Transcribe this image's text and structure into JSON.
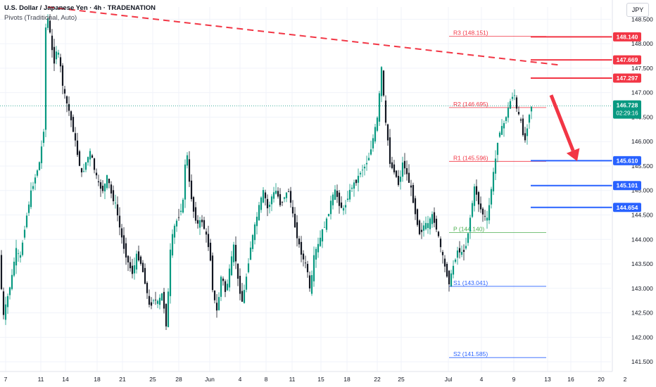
{
  "header": {
    "title": "U.S. Dollar / Japanese Yen · 4h · TRADENATION",
    "indicator": "Pivots (Traditional, Auto)",
    "currency": "JPY"
  },
  "chart_data": {
    "type": "candlestick",
    "ylim": [
      141.3,
      148.75
    ],
    "price_ticks": [
      "141.500",
      "142.000",
      "142.500",
      "143.000",
      "143.500",
      "144.000",
      "144.500",
      "145.000",
      "145.500",
      "146.000",
      "146.500",
      "147.000",
      "147.500",
      "148.000",
      "148.500"
    ],
    "date_ticks": [
      "7",
      "11",
      "14",
      "18",
      "21",
      "25",
      "28",
      "Jun",
      "4",
      "8",
      "11",
      "15",
      "18",
      "22",
      "25",
      "Jul",
      "4",
      "9",
      "13",
      "16",
      "20",
      "2"
    ],
    "current_price": {
      "value": "146.728",
      "countdown": "02:29:16",
      "level": 146.728,
      "color": "#089981"
    },
    "pivots": [
      {
        "name": "R3",
        "label": "R3 (148.151)",
        "value": 148.151,
        "color": "#f23645"
      },
      {
        "name": "R2",
        "label": "R2 (146.695)",
        "value": 146.695,
        "color": "#f23645"
      },
      {
        "name": "R1",
        "label": "R1 (145.596)",
        "value": 145.596,
        "color": "#f23645"
      },
      {
        "name": "P",
        "label": "P (144.140)",
        "value": 144.14,
        "color": "#4caf50"
      },
      {
        "name": "S1",
        "label": "S1 (143.041)",
        "value": 143.041,
        "color": "#2962ff"
      },
      {
        "name": "S2",
        "label": "S2 (141.585)",
        "value": 141.585,
        "color": "#2962ff"
      }
    ],
    "resistance_levels": [
      {
        "label": "148.140",
        "value": 148.14,
        "color": "#f23645"
      },
      {
        "label": "147.669",
        "value": 147.669,
        "color": "#f23645"
      },
      {
        "label": "147.297",
        "value": 147.297,
        "color": "#f23645"
      }
    ],
    "support_levels": [
      {
        "label": "145.610",
        "value": 145.61,
        "color": "#2962ff"
      },
      {
        "label": "145.101",
        "value": 145.101,
        "color": "#2962ff"
      },
      {
        "label": "144.654",
        "value": 144.654,
        "color": "#2962ff"
      }
    ],
    "trendline": {
      "from": [
        68,
        148.75
      ],
      "to": [
        798,
        147.56
      ],
      "color": "#f23645"
    },
    "arrow": {
      "from": [
        783,
        146.95
      ],
      "to": [
        820,
        145.6
      ],
      "color": "#f23645"
    },
    "colors": {
      "up": "#089981",
      "down": "#131722",
      "grid": "#f0f3fa"
    },
    "path": [
      [
        0,
        143.8
      ],
      [
        6,
        142.4
      ],
      [
        12,
        142.8
      ],
      [
        18,
        143.2
      ],
      [
        24,
        143.8
      ],
      [
        30,
        143.6
      ],
      [
        36,
        144.2
      ],
      [
        42,
        144.7
      ],
      [
        46,
        145.0
      ],
      [
        52,
        145.3
      ],
      [
        58,
        145.6
      ],
      [
        64,
        146.3
      ],
      [
        66,
        148.3
      ],
      [
        70,
        148.55
      ],
      [
        74,
        148.0
      ],
      [
        78,
        147.6
      ],
      [
        82,
        147.9
      ],
      [
        86,
        147.7
      ],
      [
        90,
        147.2
      ],
      [
        94,
        146.9
      ],
      [
        100,
        146.6
      ],
      [
        106,
        146.2
      ],
      [
        112,
        145.7
      ],
      [
        118,
        145.3
      ],
      [
        124,
        145.6
      ],
      [
        130,
        145.8
      ],
      [
        136,
        145.4
      ],
      [
        142,
        145.1
      ],
      [
        148,
        145.0
      ],
      [
        154,
        145.3
      ],
      [
        160,
        144.9
      ],
      [
        166,
        144.7
      ],
      [
        172,
        144.2
      ],
      [
        178,
        143.8
      ],
      [
        184,
        143.5
      ],
      [
        190,
        143.3
      ],
      [
        196,
        143.7
      ],
      [
        202,
        143.5
      ],
      [
        208,
        143.1
      ],
      [
        214,
        142.6
      ],
      [
        220,
        142.8
      ],
      [
        226,
        142.7
      ],
      [
        232,
        142.9
      ],
      [
        238,
        142.2
      ],
      [
        244,
        143.9
      ],
      [
        250,
        144.3
      ],
      [
        256,
        144.5
      ],
      [
        262,
        144.8
      ],
      [
        266,
        146.0
      ],
      [
        270,
        145.2
      ],
      [
        276,
        144.6
      ],
      [
        282,
        144.3
      ],
      [
        288,
        144.4
      ],
      [
        294,
        144.1
      ],
      [
        300,
        143.7
      ],
      [
        304,
        142.9
      ],
      [
        310,
        142.5
      ],
      [
        316,
        143.3
      ],
      [
        322,
        142.9
      ],
      [
        328,
        143.4
      ],
      [
        334,
        143.9
      ],
      [
        340,
        143.1
      ],
      [
        346,
        142.7
      ],
      [
        352,
        143.3
      ],
      [
        358,
        143.9
      ],
      [
        364,
        144.3
      ],
      [
        370,
        144.7
      ],
      [
        376,
        145.0
      ],
      [
        382,
        144.6
      ],
      [
        388,
        144.9
      ],
      [
        394,
        145.0
      ],
      [
        400,
        144.7
      ],
      [
        406,
        144.9
      ],
      [
        412,
        145.0
      ],
      [
        416,
        144.6
      ],
      [
        420,
        144.3
      ],
      [
        426,
        143.9
      ],
      [
        432,
        143.6
      ],
      [
        438,
        143.4
      ],
      [
        442,
        142.9
      ],
      [
        448,
        143.7
      ],
      [
        454,
        143.9
      ],
      [
        460,
        144.2
      ],
      [
        466,
        144.4
      ],
      [
        472,
        144.8
      ],
      [
        478,
        145.0
      ],
      [
        484,
        144.7
      ],
      [
        490,
        144.6
      ],
      [
        496,
        144.9
      ],
      [
        502,
        145.1
      ],
      [
        508,
        145.2
      ],
      [
        514,
        145.4
      ],
      [
        520,
        145.5
      ],
      [
        526,
        145.7
      ],
      [
        532,
        146.1
      ],
      [
        538,
        146.5
      ],
      [
        544,
        147.6
      ],
      [
        548,
        146.5
      ],
      [
        552,
        146.1
      ],
      [
        556,
        145.5
      ],
      [
        562,
        145.4
      ],
      [
        568,
        145.1
      ],
      [
        574,
        145.6
      ],
      [
        580,
        145.3
      ],
      [
        586,
        145.0
      ],
      [
        592,
        144.5
      ],
      [
        598,
        144.1
      ],
      [
        604,
        144.3
      ],
      [
        610,
        144.3
      ],
      [
        616,
        144.5
      ],
      [
        622,
        144.2
      ],
      [
        628,
        143.8
      ],
      [
        634,
        143.4
      ],
      [
        640,
        143.1
      ],
      [
        646,
        143.5
      ],
      [
        652,
        143.8
      ],
      [
        658,
        143.7
      ],
      [
        664,
        143.9
      ],
      [
        670,
        144.5
      ],
      [
        676,
        145.1
      ],
      [
        682,
        144.7
      ],
      [
        688,
        144.5
      ],
      [
        694,
        144.4
      ],
      [
        700,
        145.1
      ],
      [
        706,
        145.7
      ],
      [
        710,
        146.2
      ],
      [
        716,
        146.3
      ],
      [
        722,
        146.6
      ],
      [
        728,
        146.9
      ],
      [
        732,
        147.0
      ],
      [
        736,
        146.6
      ],
      [
        740,
        146.5
      ],
      [
        744,
        146.2
      ],
      [
        748,
        146.0
      ],
      [
        752,
        146.5
      ],
      [
        756,
        146.728
      ]
    ]
  }
}
